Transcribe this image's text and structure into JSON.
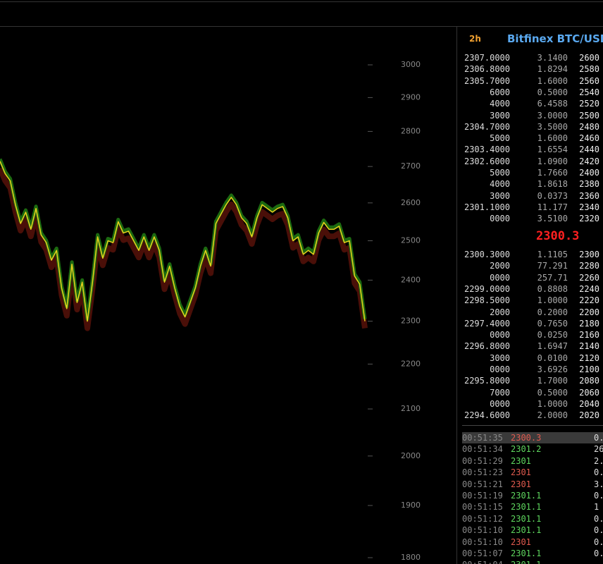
{
  "header": {
    "interval": "2h",
    "title": "Bitfinex BTC/USD"
  },
  "chart": {
    "type": "line",
    "log_scale": true,
    "color": "#e8d21c",
    "ylim": [
      1800,
      3000
    ],
    "yticks": [
      1800,
      1900,
      2000,
      2100,
      2200,
      2300,
      2400,
      2500,
      2600,
      2700,
      2800,
      2900,
      3000
    ],
    "values": [
      2715,
      2680,
      2660,
      2595,
      2545,
      2575,
      2530,
      2585,
      2515,
      2495,
      2450,
      2475,
      2380,
      2330,
      2440,
      2345,
      2395,
      2300,
      2395,
      2510,
      2455,
      2500,
      2495,
      2550,
      2520,
      2525,
      2500,
      2475,
      2510,
      2475,
      2510,
      2475,
      2395,
      2435,
      2380,
      2335,
      2310,
      2345,
      2380,
      2435,
      2475,
      2435,
      2545,
      2570,
      2595,
      2615,
      2595,
      2560,
      2545,
      2510,
      2560,
      2595,
      2585,
      2575,
      2585,
      2590,
      2560,
      2500,
      2510,
      2465,
      2475,
      2465,
      2520,
      2548,
      2530,
      2530,
      2538,
      2495,
      2500,
      2410,
      2390,
      2300
    ]
  },
  "order_book": {
    "asks": [
      [
        "2307.0000",
        "3.1400",
        2600
      ],
      [
        "2306.8000",
        "1.8294",
        2580
      ],
      [
        "2305.7000",
        "1.6000",
        2560
      ],
      [
        "6000",
        "0.5000",
        2540
      ],
      [
        "4000",
        "6.4588",
        2520
      ],
      [
        "3000",
        "3.0000",
        2500
      ],
      [
        "2304.7000",
        "3.5000",
        2480
      ],
      [
        "5000",
        "1.6000",
        2460
      ],
      [
        "2303.4000",
        "1.6554",
        2440
      ],
      [
        "2302.6000",
        "1.0900",
        2420
      ],
      [
        "5000",
        "1.7660",
        2400
      ],
      [
        "4000",
        "1.8618",
        2380
      ],
      [
        "3000",
        "0.0373",
        2360
      ],
      [
        "2301.1000",
        "11.177",
        2340
      ],
      [
        "0000",
        "3.5100",
        2320
      ]
    ],
    "last_price": "2300.3",
    "bids": [
      [
        "2300.3000",
        "1.1105",
        2300
      ],
      [
        "2000",
        "77.291",
        2280
      ],
      [
        "0000",
        "257.71",
        2260
      ],
      [
        "2299.0000",
        "0.8808",
        2240
      ],
      [
        "2298.5000",
        "1.0000",
        2220
      ],
      [
        "2000",
        "0.2000",
        2200
      ],
      [
        "2297.4000",
        "0.7650",
        2180
      ],
      [
        "0000",
        "0.0250",
        2160
      ],
      [
        "2296.8000",
        "1.6947",
        2140
      ],
      [
        "3000",
        "0.0100",
        2120
      ],
      [
        "0000",
        "3.6926",
        2100
      ],
      [
        "2295.8000",
        "1.7000",
        2080
      ],
      [
        "7000",
        "0.5000",
        2060
      ],
      [
        "0000",
        "1.0000",
        2040
      ],
      [
        "2294.6000",
        "2.0000",
        2020
      ]
    ]
  },
  "trades": [
    {
      "time": "00:51:35",
      "price": "2300.3",
      "amount": "0.",
      "color": "#e05a4e"
    },
    {
      "time": "00:51:34",
      "price": "2301.2",
      "amount": "26",
      "color": "#5ed65e"
    },
    {
      "time": "00:51:29",
      "price": "2301",
      "amount": "2.",
      "color": "#5ed65e"
    },
    {
      "time": "00:51:23",
      "price": "2301",
      "amount": "0.",
      "color": "#e05a4e"
    },
    {
      "time": "00:51:21",
      "price": "2301",
      "amount": "3.",
      "color": "#e05a4e"
    },
    {
      "time": "00:51:19",
      "price": "2301.1",
      "amount": "0.",
      "color": "#5ed65e"
    },
    {
      "time": "00:51:15",
      "price": "2301.1",
      "amount": "1",
      "color": "#5ed65e"
    },
    {
      "time": "00:51:12",
      "price": "2301.1",
      "amount": "0.",
      "color": "#5ed65e"
    },
    {
      "time": "00:51:10",
      "price": "2301.1",
      "amount": "0.",
      "color": "#5ed65e"
    },
    {
      "time": "00:51:10",
      "price": "2301",
      "amount": "0.",
      "color": "#e05a4e"
    },
    {
      "time": "00:51:07",
      "price": "2301.1",
      "amount": "0.",
      "color": "#5ed65e"
    },
    {
      "time": "00:51:04",
      "price": "2301.1",
      "color": "#5ed65e"
    }
  ]
}
